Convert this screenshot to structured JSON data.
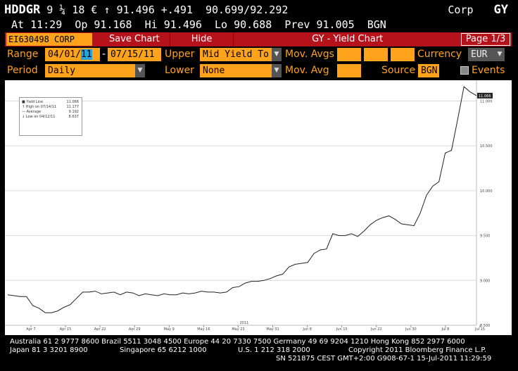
{
  "header": {
    "ticker": "HDDGR",
    "security_desc": "9 ¼ 18 €",
    "arrow": "↑",
    "last_price": "91.496",
    "change": "+.491",
    "bid_ask": "90.699/92.292",
    "sector": "Corp",
    "function": "GY"
  },
  "quote": {
    "at_label": "At",
    "at_time": "11:29",
    "op_label": "Op",
    "op": "91.168",
    "hi_label": "Hi",
    "hi": "91.496",
    "lo_label": "Lo",
    "lo": "90.688",
    "prev_label": "Prev",
    "prev": "91.005",
    "source": "BGN"
  },
  "toolbar": {
    "security_id": "EI630498 CORP",
    "save_chart": "Save Chart",
    "hide": "Hide",
    "title": "GY - Yield Chart",
    "page": "Page 1/3"
  },
  "controls": {
    "range_label": "Range",
    "start_date_prefix": "04/01/",
    "start_date_hl": "11",
    "dash": "-",
    "end_date": "07/15/11",
    "upper_label": "Upper",
    "upper_value": "Mid Yield To M",
    "mov_avgs_label": "Mov. Avgs",
    "currency_label": "Currency",
    "currency_value": "EUR",
    "period_label": "Period",
    "period_value": "Daily",
    "lower_label": "Lower",
    "lower_value": "None",
    "mov_avg_label": "Mov. Avg",
    "source_label": "Source",
    "source_value": "BGN",
    "events_label": "Events"
  },
  "legend": {
    "rows": [
      {
        "label": "Yield Line",
        "value": "11.066"
      },
      {
        "label": "High on 07/14/11",
        "value": "11.177"
      },
      {
        "label": "Average",
        "value": "9.192"
      },
      {
        "label": "Low on 04/12/11",
        "value": "8.637"
      }
    ]
  },
  "chart_data": {
    "type": "line",
    "series": [
      {
        "name": "Yield Line",
        "color": "#222222"
      }
    ],
    "ylim": [
      8.5,
      11.2
    ],
    "yticks": [
      "8.500",
      "9.000",
      "9.500",
      "10.000",
      "10.500",
      "11.000"
    ],
    "last_value_label": "11.066",
    "xticks": [
      "Apr 7",
      "Apr 15",
      "Apr 22",
      "Apr 29",
      "May 9",
      "May 16",
      "May 23",
      "May 31",
      "Jun 8",
      "Jun 15",
      "Jun 22",
      "Jun 30",
      "Jul 8",
      "Jul 15"
    ],
    "year_label": "2011",
    "x": [
      1,
      2,
      3,
      4,
      5,
      6,
      7,
      8,
      9,
      10,
      11,
      12,
      13,
      14,
      15,
      16,
      17,
      18,
      19,
      20,
      21,
      22,
      23,
      24,
      25,
      26,
      27,
      28,
      29,
      30,
      31,
      32,
      33,
      34,
      35,
      36,
      37,
      38,
      39,
      40,
      41,
      42,
      43,
      44,
      45,
      46,
      47,
      48,
      49,
      50,
      51,
      52,
      53,
      54,
      55,
      56,
      57,
      58,
      59,
      60,
      61,
      62,
      63,
      64,
      65,
      66,
      67,
      68,
      69,
      70,
      71,
      72,
      73,
      74,
      75,
      76
    ],
    "values": [
      8.84,
      8.83,
      8.82,
      8.82,
      8.72,
      8.69,
      8.64,
      8.64,
      8.66,
      8.7,
      8.73,
      8.8,
      8.87,
      8.87,
      8.88,
      8.85,
      8.86,
      8.87,
      8.84,
      8.87,
      8.86,
      8.83,
      8.85,
      8.84,
      8.83,
      8.85,
      8.84,
      8.84,
      8.86,
      8.85,
      8.86,
      8.88,
      8.87,
      8.87,
      8.86,
      8.87,
      8.92,
      8.93,
      8.97,
      8.99,
      8.99,
      9.0,
      9.02,
      9.05,
      9.07,
      9.15,
      9.18,
      9.19,
      9.2,
      9.3,
      9.34,
      9.35,
      9.52,
      9.5,
      9.5,
      9.52,
      9.49,
      9.55,
      9.62,
      9.67,
      9.7,
      9.72,
      9.68,
      9.63,
      9.62,
      9.61,
      9.75,
      9.95,
      10.05,
      10.1,
      10.42,
      10.45,
      10.8,
      11.16,
      11.1,
      11.06
    ]
  },
  "footer": {
    "line1": "Australia 61 2 9777 8600 Brazil 5511 3048 4500 Europe 44 20 7330 7500 Germany 49 69 9204 1210 Hong Kong 852 2977 6000",
    "line2a": "Japan 81 3 3201 8900",
    "line2b": "Singapore 65 6212 1000",
    "line2c": "U.S. 1 212 318 2000",
    "line2d": "Copyright 2011 Bloomberg Finance L.P.",
    "line3": "SN 521875 CEST GMT+2:00 G908-67-1 15-Jul-2011 11:29:59"
  }
}
